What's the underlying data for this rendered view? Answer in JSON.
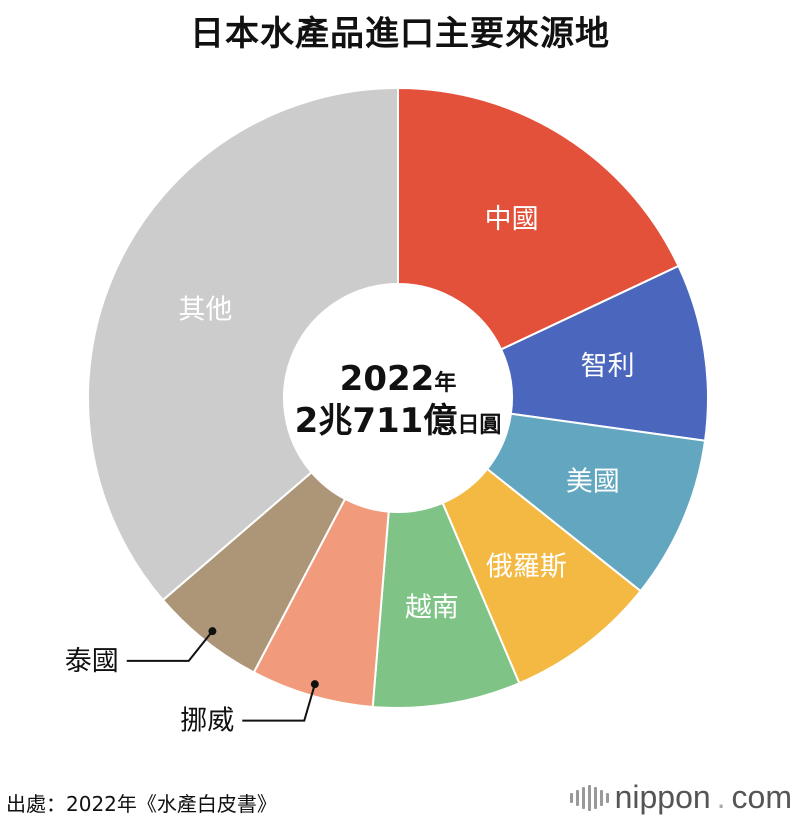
{
  "title": "日本水產品進口主要來源地",
  "center": {
    "line1_num": "2022",
    "line1_unit": "年",
    "line2_num": "2兆711億",
    "line2_unit": "日圓"
  },
  "source": "出處：2022年《水產白皮書》",
  "brand": {
    "name": "nippon",
    "dot": ".",
    "tld": "com"
  },
  "chart_data": {
    "type": "pie",
    "variant": "donut",
    "slices": [
      {
        "label": "中國",
        "value": 18.0,
        "color": "#e4513a",
        "label_position": "inside"
      },
      {
        "label": "智利",
        "value": 9.2,
        "color": "#4a67bd",
        "label_position": "inside"
      },
      {
        "label": "美國",
        "value": 8.5,
        "color": "#62a6c0",
        "label_position": "inside"
      },
      {
        "label": "俄羅斯",
        "value": 7.9,
        "color": "#f4b942",
        "label_position": "inside"
      },
      {
        "label": "越南",
        "value": 7.7,
        "color": "#7fc486",
        "label_position": "inside"
      },
      {
        "label": "挪威",
        "value": 6.4,
        "color": "#f19b7c",
        "label_position": "outside"
      },
      {
        "label": "泰國",
        "value": 6.0,
        "color": "#ad9677",
        "label_position": "outside"
      },
      {
        "label": "其他",
        "value": 36.3,
        "color": "#cccccc",
        "label_position": "inside"
      }
    ],
    "start": "top",
    "direction": "clockwise",
    "legend": "none"
  }
}
